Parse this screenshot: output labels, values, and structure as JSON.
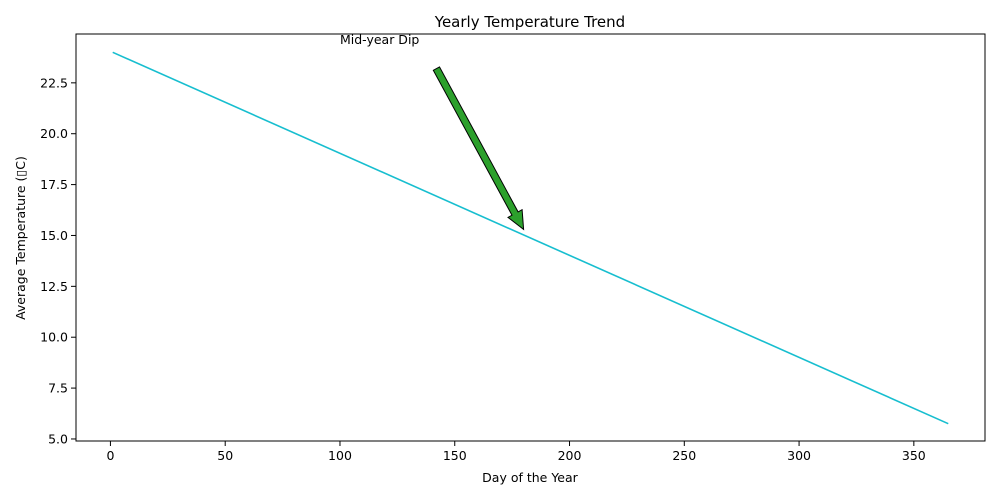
{
  "chart_data": {
    "type": "line",
    "title": "Yearly Temperature Trend",
    "xlabel": "Day of the Year",
    "ylabel": "Average Temperature (▯C)",
    "xlim": [
      -15,
      381
    ],
    "ylim": [
      4.9,
      24.9
    ],
    "xticks": [
      0,
      50,
      100,
      150,
      200,
      250,
      300,
      350
    ],
    "yticks": [
      5.0,
      7.5,
      10.0,
      12.5,
      15.0,
      17.5,
      20.0,
      22.5
    ],
    "ytick_labels": [
      "5.0",
      "7.5",
      "10.0",
      "12.5",
      "15.0",
      "17.5",
      "20.0",
      "22.5"
    ],
    "grid": false,
    "series": [
      {
        "color": "#17becf",
        "x": [
          1,
          365
        ],
        "y": [
          24.0,
          5.75
        ]
      }
    ],
    "annotations": [
      {
        "text": "Mid-year Dip",
        "text_xy": [
          100,
          24.4
        ],
        "arrow_tail": [
          142,
          23.2
        ],
        "arrow_head": [
          180,
          15.3
        ],
        "arrow_color": "#2ca02c"
      }
    ]
  }
}
